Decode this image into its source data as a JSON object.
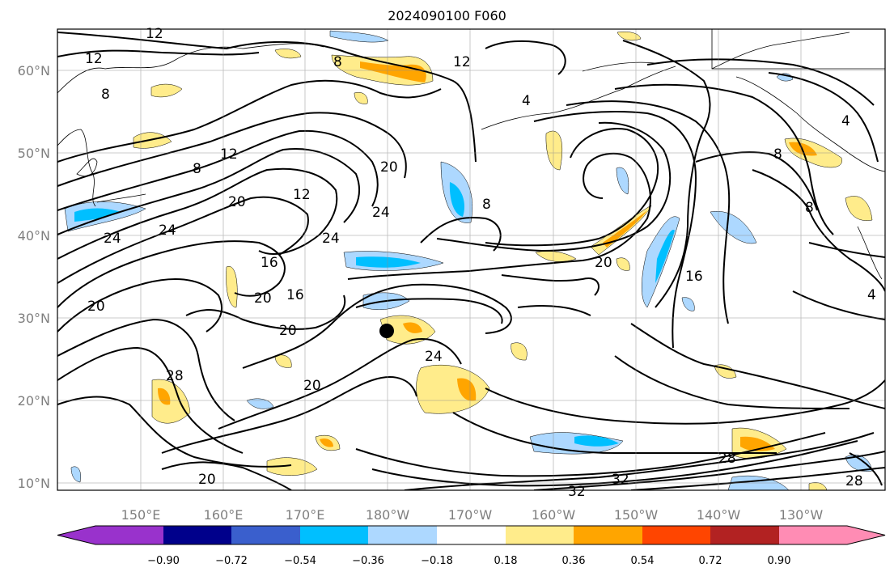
{
  "title": "2024090100 F060",
  "lat_labels": [
    "60°N",
    "50°N",
    "40°N",
    "30°N",
    "20°N",
    "10°N"
  ],
  "lon_labels": [
    "150°E",
    "160°E",
    "170°E",
    "180°W",
    "170°W",
    "160°W",
    "150°W",
    "140°W",
    "130°W"
  ],
  "colorbar": {
    "tick_labels": [
      "−0.90",
      "−0.72",
      "−0.54",
      "−0.36",
      "−0.18",
      "0.18",
      "0.36",
      "0.54",
      "0.72",
      "0.90"
    ],
    "colors": [
      "#9932cc",
      "#00008b",
      "#3a5fcd",
      "#00bfff",
      "#add8ff",
      "#ffffff",
      "#ffec8b",
      "#ffa500",
      "#ff4500",
      "#b22222",
      "#ff8cb4"
    ]
  },
  "contour_labels": [
    "12",
    "12",
    "12",
    "8",
    "8",
    "8",
    "8",
    "8",
    "8",
    "12",
    "12",
    "16",
    "16",
    "16",
    "20",
    "20",
    "20",
    "20",
    "20",
    "20",
    "20",
    "20",
    "24",
    "24",
    "24",
    "24",
    "24",
    "28",
    "28",
    "28",
    "32",
    "32",
    "4",
    "4",
    "4"
  ],
  "marker": "storm-center-dot"
}
